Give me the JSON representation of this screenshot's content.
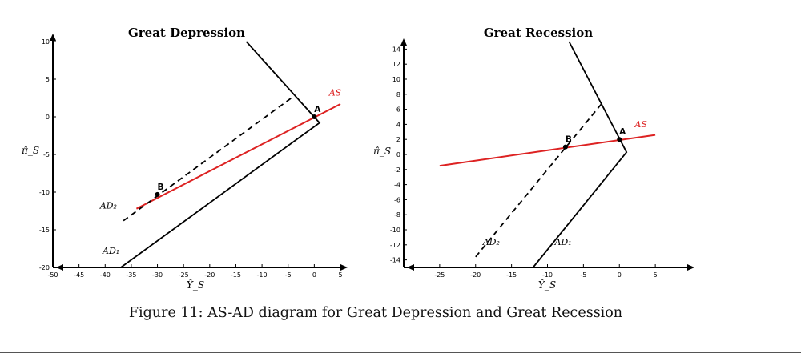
{
  "caption": "Figure 11: AS-AD diagram for Great Depression and Great Recession",
  "colors": {
    "axis": "#000000",
    "as_curve": "#dd2222",
    "ad_curve": "#000000",
    "label_as": "#dd2222"
  },
  "chart_data": [
    {
      "type": "line",
      "title": "Great Depression",
      "xlabel": "Ŷ_S",
      "ylabel": "π̂_S",
      "xlim": [
        -50,
        5
      ],
      "ylim": [
        -20,
        10
      ],
      "xticks": [
        -50,
        -45,
        -40,
        -35,
        -30,
        -25,
        -20,
        -15,
        -10,
        -5,
        0,
        5
      ],
      "yticks": [
        -20,
        -15,
        -10,
        -5,
        0,
        5,
        10
      ],
      "series": [
        {
          "name": "AS",
          "label": "AS",
          "style": "solid-red",
          "points": [
            [
              -34,
              -12.2
            ],
            [
              5,
              1.7
            ]
          ],
          "label_at": [
            4,
            2.8
          ]
        },
        {
          "name": "AD1",
          "label": "AD₁",
          "style": "solid",
          "points": [
            [
              -37,
              -20
            ],
            [
              1,
              -0.8
            ],
            [
              -13,
              10
            ]
          ],
          "label_at": [
            -40.5,
            -18.2
          ]
        },
        {
          "name": "AD2",
          "label": "AD₂",
          "style": "dashed",
          "points": [
            [
              -36.5,
              -13.8
            ],
            [
              -4,
              2.7
            ]
          ],
          "label_at": [
            -41,
            -12.2
          ]
        }
      ],
      "points": [
        {
          "label": "A",
          "x": 0,
          "y": 0
        },
        {
          "label": "B",
          "x": -30,
          "y": -10.3
        }
      ]
    },
    {
      "type": "line",
      "title": "Great Recession",
      "xlabel": "Ŷ_S",
      "ylabel": "π̂_S",
      "xlim": [
        -30,
        10
      ],
      "ylim": [
        -15,
        15
      ],
      "xticks": [
        -25,
        -20,
        -15,
        -10,
        -5,
        0,
        5
      ],
      "yticks": [
        -14,
        -12,
        -10,
        -8,
        -6,
        -4,
        -2,
        0,
        2,
        4,
        6,
        8,
        10,
        12,
        14
      ],
      "series": [
        {
          "name": "AS",
          "label": "AS",
          "style": "solid-red",
          "points": [
            [
              -25,
              -1.5
            ],
            [
              5,
              2.6
            ]
          ],
          "label_at": [
            3,
            3.6
          ]
        },
        {
          "name": "AD1",
          "label": "AD₁",
          "style": "solid",
          "points": [
            [
              -12,
              -15
            ],
            [
              1,
              0.3
            ],
            [
              -7,
              15
            ]
          ],
          "label_at": [
            -9,
            -12
          ]
        },
        {
          "name": "AD2",
          "label": "AD₂",
          "style": "dashed",
          "points": [
            [
              -20,
              -13.6
            ],
            [
              -2.5,
              6.7
            ]
          ],
          "label_at": [
            -19,
            -12
          ]
        }
      ],
      "points": [
        {
          "label": "A",
          "x": 0,
          "y": 2
        },
        {
          "label": "B",
          "x": -7.5,
          "y": 1
        }
      ]
    }
  ]
}
